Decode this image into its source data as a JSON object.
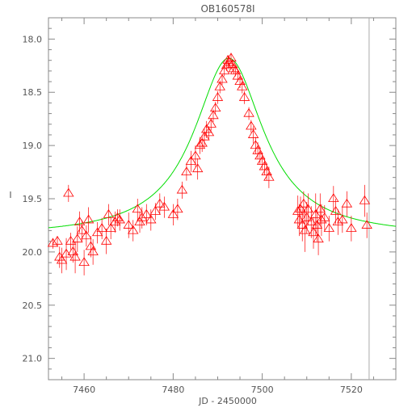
{
  "chart_data": {
    "type": "scatter",
    "title": "OB160578I",
    "xlabel": "JD - 2450000",
    "ylabel": "I",
    "xlim": [
      7452,
      7530
    ],
    "ylim": [
      21.2,
      17.8
    ],
    "y_inverted": true,
    "xticks": [
      7460,
      7480,
      7500,
      7520
    ],
    "xtick_labels": [
      "7460",
      "7480",
      "7500",
      "7520"
    ],
    "yticks": [
      18.0,
      18.5,
      19.0,
      19.5,
      20.0,
      20.5,
      21.0
    ],
    "ytick_labels": [
      "18.0",
      "18.5",
      "19.0",
      "19.5",
      "20.0",
      "20.5",
      "21.0"
    ],
    "grid": false,
    "vertical_line_x": 7524,
    "colors": {
      "points": "#ff0000",
      "model": "#00dd00",
      "axes": "#888888",
      "vline": "#aaaaaa"
    },
    "model": {
      "name": "",
      "baseline": 19.86,
      "peak": 18.18,
      "t0": 7492.5,
      "tE": 12.0
    },
    "series": [
      {
        "marker": "triangle-open",
        "x": [
          7453.0,
          7454.0,
          7454.5,
          7455.0,
          7456.0,
          7456.5,
          7457.0,
          7457.5,
          7458.0,
          7458.5,
          7459.0,
          7459.5,
          7460.0,
          7460.5,
          7461.0,
          7461.5,
          7462.0,
          7463.0,
          7464.0,
          7465.0,
          7465.5,
          7466.0,
          7467.0,
          7467.5,
          7468.0,
          7470.0,
          7471.0,
          7472.0,
          7472.5,
          7473.0,
          7474.0,
          7475.0,
          7476.0,
          7477.0,
          7478.0,
          7480.0,
          7481.0,
          7482.0,
          7483.0,
          7484.0,
          7485.0,
          7485.5,
          7486.0,
          7486.5,
          7487.0,
          7487.5,
          7488.0,
          7488.5,
          7489.0,
          7489.5,
          7490.0,
          7490.5,
          7491.0,
          7491.5,
          7492.0,
          7492.3,
          7492.6,
          7493.0,
          7493.3,
          7493.6,
          7494.0,
          7494.5,
          7495.0,
          7495.5,
          7496.0,
          7497.0,
          7497.5,
          7498.0,
          7498.5,
          7499.0,
          7499.5,
          7500.0,
          7500.5,
          7501.0,
          7501.5,
          7508.0,
          7508.3,
          7508.6,
          7509.0,
          7509.3,
          7509.6,
          7510.0,
          7510.3,
          7511.0,
          7511.5,
          7512.0,
          7512.3,
          7512.6,
          7513.0,
          7513.3,
          7514.0,
          7515.0,
          7516.0,
          7516.5,
          7517.0,
          7518.0,
          7519.0,
          7520.0,
          7523.0,
          7523.5
        ],
        "y": [
          19.92,
          19.9,
          20.05,
          20.08,
          20.02,
          19.45,
          19.9,
          20.0,
          20.05,
          19.88,
          19.72,
          19.8,
          20.1,
          19.85,
          19.7,
          19.95,
          20.0,
          19.82,
          19.78,
          19.9,
          19.65,
          19.78,
          19.72,
          19.68,
          19.7,
          19.75,
          19.8,
          19.6,
          19.72,
          19.68,
          19.65,
          19.7,
          19.62,
          19.55,
          19.58,
          19.65,
          19.6,
          19.42,
          19.25,
          19.15,
          19.1,
          19.22,
          19.0,
          18.98,
          18.92,
          18.85,
          18.88,
          18.8,
          18.72,
          18.65,
          18.55,
          18.45,
          18.38,
          18.3,
          18.25,
          18.2,
          18.22,
          18.18,
          18.24,
          18.28,
          18.3,
          18.35,
          18.4,
          18.45,
          18.55,
          18.7,
          18.82,
          18.9,
          19.0,
          19.05,
          19.1,
          19.15,
          19.2,
          19.25,
          19.3,
          19.62,
          19.7,
          19.6,
          19.75,
          19.55,
          19.8,
          19.68,
          19.6,
          19.72,
          19.82,
          19.65,
          19.75,
          19.88,
          19.6,
          19.7,
          19.68,
          19.78,
          19.5,
          19.62,
          19.72,
          19.7,
          19.55,
          19.78,
          19.52,
          19.75
        ],
        "yerr": [
          0.05,
          0.05,
          0.1,
          0.12,
          0.15,
          0.08,
          0.08,
          0.1,
          0.15,
          0.12,
          0.1,
          0.1,
          0.12,
          0.1,
          0.12,
          0.1,
          0.12,
          0.1,
          0.1,
          0.12,
          0.1,
          0.1,
          0.1,
          0.08,
          0.1,
          0.12,
          0.1,
          0.1,
          0.1,
          0.1,
          0.1,
          0.1,
          0.08,
          0.1,
          0.1,
          0.1,
          0.1,
          0.08,
          0.08,
          0.1,
          0.1,
          0.1,
          0.08,
          0.08,
          0.08,
          0.08,
          0.06,
          0.06,
          0.06,
          0.06,
          0.06,
          0.06,
          0.05,
          0.05,
          0.05,
          0.05,
          0.05,
          0.05,
          0.05,
          0.05,
          0.05,
          0.05,
          0.06,
          0.06,
          0.06,
          0.06,
          0.06,
          0.08,
          0.08,
          0.08,
          0.08,
          0.08,
          0.08,
          0.08,
          0.1,
          0.15,
          0.15,
          0.12,
          0.15,
          0.12,
          0.2,
          0.15,
          0.15,
          0.15,
          0.15,
          0.2,
          0.15,
          0.15,
          0.15,
          0.15,
          0.12,
          0.12,
          0.12,
          0.12,
          0.12,
          0.12,
          0.12,
          0.12,
          0.15,
          0.12
        ]
      }
    ]
  }
}
